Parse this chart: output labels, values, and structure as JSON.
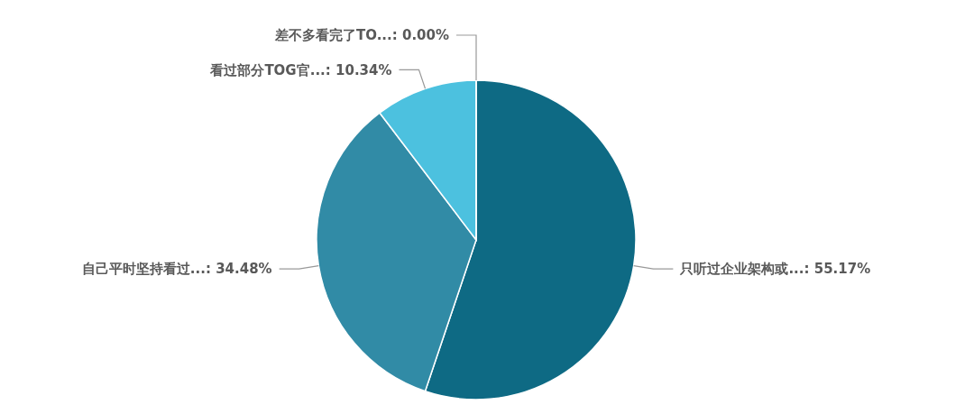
{
  "chart_data": {
    "type": "pie",
    "categories": [
      "只听过企业架构或...: 55.17%",
      "自己平时坚持看过...: 34.48%",
      "看过部分TOG官...: 10.34%",
      "差不多看完了TO...: 0.00%"
    ],
    "values": [
      55.17,
      34.48,
      10.34,
      0.0
    ],
    "colors": [
      "#0e6a84",
      "#318ba6",
      "#4cc1df",
      "#7fd3e8"
    ]
  }
}
